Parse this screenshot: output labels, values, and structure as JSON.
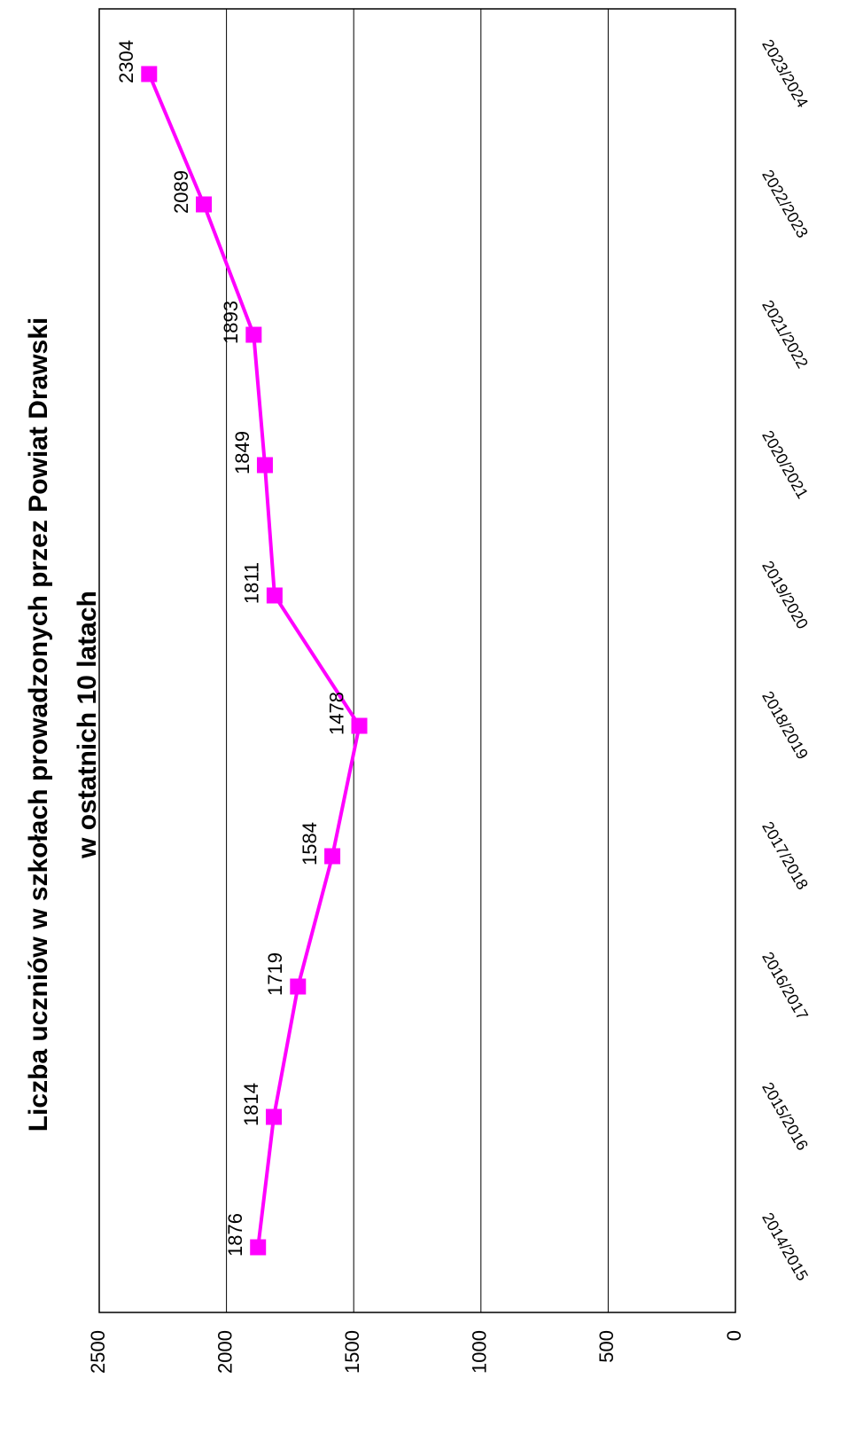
{
  "chart_data": {
    "type": "line",
    "title": "Liczba uczniów w szkołach prowadzonych przez Powiat Drawski",
    "subtitle": "w ostatnich 10 latach",
    "categories": [
      "2014/2015",
      "2015/2016",
      "2016/2017",
      "2017/2018",
      "2018/2019",
      "2019/2020",
      "2020/2021",
      "2021/2022",
      "2022/2023",
      "2023/2024"
    ],
    "series": [
      {
        "name": "Liczba uczniów",
        "color": "#ff00ff",
        "values": [
          1876,
          1814,
          1719,
          1584,
          1478,
          1811,
          1849,
          1893,
          2089,
          2304
        ]
      }
    ],
    "ylim": [
      0,
      2500
    ],
    "yticks": [
      0,
      500,
      1000,
      1500,
      2000,
      2500
    ],
    "grid": true
  }
}
